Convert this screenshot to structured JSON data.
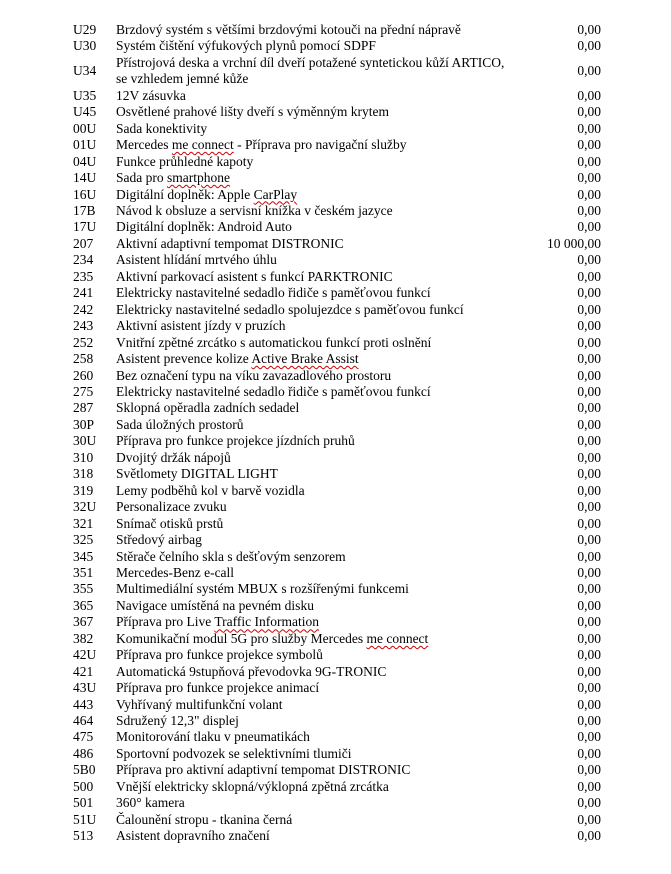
{
  "page": {
    "background": "#ffffff",
    "text_color": "#000000",
    "misspell_color": "#cc0000"
  },
  "price_table": {
    "columns": [
      "code",
      "description",
      "price"
    ],
    "rows": [
      {
        "code": "U29",
        "desc": [
          [
            "Brzdový systém s většími brzdovými kotouči na přední nápravě",
            false
          ]
        ],
        "price": "0,00"
      },
      {
        "code": "U30",
        "desc": [
          [
            "Systém čištění výfukových plynů pomocí SDPF",
            false
          ]
        ],
        "price": "0,00"
      },
      {
        "code": "U34",
        "desc": [
          [
            "Přístrojová deska a vrchní díl dveří potažené syntetickou kůží ARTICO,\nse vzhledem jemné kůže",
            false
          ]
        ],
        "price": "0,00"
      },
      {
        "code": "U35",
        "desc": [
          [
            "12V zásuvka",
            false
          ]
        ],
        "price": "0,00"
      },
      {
        "code": "U45",
        "desc": [
          [
            "Osvětlené prahové lišty dveří s výměnným krytem",
            false
          ]
        ],
        "price": "0,00"
      },
      {
        "code": "00U",
        "desc": [
          [
            "Sada konektivity",
            false
          ]
        ],
        "price": "0,00"
      },
      {
        "code": "01U",
        "desc": [
          [
            "Mercedes ",
            false
          ],
          [
            "me connect",
            true
          ],
          [
            " - Příprava pro navigační služby",
            false
          ]
        ],
        "price": "0,00"
      },
      {
        "code": "04U",
        "desc": [
          [
            "Funkce průhledné kapoty",
            false
          ]
        ],
        "price": "0,00"
      },
      {
        "code": "14U",
        "desc": [
          [
            "Sada pro ",
            false
          ],
          [
            "smartphone",
            true
          ]
        ],
        "price": "0,00"
      },
      {
        "code": "16U",
        "desc": [
          [
            "Digitální doplněk: Apple ",
            false
          ],
          [
            "CarPlay",
            true
          ]
        ],
        "price": "0,00"
      },
      {
        "code": "17B",
        "desc": [
          [
            "Návod k obsluze a servisní knížka v českém jazyce",
            false
          ]
        ],
        "price": "0,00"
      },
      {
        "code": "17U",
        "desc": [
          [
            "Digitální doplněk: Android Auto",
            false
          ]
        ],
        "price": "0,00"
      },
      {
        "code": "207",
        "desc": [
          [
            "Aktivní adaptivní tempomat DISTRONIC",
            false
          ]
        ],
        "price": "10 000,00"
      },
      {
        "code": "234",
        "desc": [
          [
            "Asistent hlídání mrtvého úhlu",
            false
          ]
        ],
        "price": "0,00"
      },
      {
        "code": "235",
        "desc": [
          [
            "Aktivní parkovací asistent s funkcí PARKTRONIC",
            false
          ]
        ],
        "price": "0,00"
      },
      {
        "code": "241",
        "desc": [
          [
            "Elektricky nastavitelné sedadlo řidiče s paměťovou funkcí",
            false
          ]
        ],
        "price": "0,00"
      },
      {
        "code": "242",
        "desc": [
          [
            "Elektricky nastavitelné sedadlo spolujezdce s paměťovou funkcí",
            false
          ]
        ],
        "price": "0,00"
      },
      {
        "code": "243",
        "desc": [
          [
            "Aktivní asistent jízdy v pruzích",
            false
          ]
        ],
        "price": "0,00"
      },
      {
        "code": "252",
        "desc": [
          [
            "Vnitřní zpětné zrcátko s automatickou funkcí proti oslnění",
            false
          ]
        ],
        "price": "0,00"
      },
      {
        "code": "258",
        "desc": [
          [
            "Asistent prevence kolize ",
            false
          ],
          [
            "Active Brake Assist",
            true
          ]
        ],
        "price": "0,00"
      },
      {
        "code": "260",
        "desc": [
          [
            "Bez označení typu na víku zavazadlového prostoru",
            false
          ]
        ],
        "price": "0,00"
      },
      {
        "code": "275",
        "desc": [
          [
            "Elektricky nastavitelné sedadlo řidiče s paměťovou funkcí",
            false
          ]
        ],
        "price": "0,00"
      },
      {
        "code": "287",
        "desc": [
          [
            "Sklopná opěradla zadních sedadel",
            false
          ]
        ],
        "price": "0,00"
      },
      {
        "code": "30P",
        "desc": [
          [
            "Sada úložných prostorů",
            false
          ]
        ],
        "price": "0,00"
      },
      {
        "code": "30U",
        "desc": [
          [
            "Příprava pro funkce projekce jízdních pruhů",
            false
          ]
        ],
        "price": "0,00"
      },
      {
        "code": "310",
        "desc": [
          [
            "Dvojitý držák nápojů",
            false
          ]
        ],
        "price": "0,00"
      },
      {
        "code": "318",
        "desc": [
          [
            "Světlomety DIGITAL LIGHT",
            false
          ]
        ],
        "price": "0,00"
      },
      {
        "code": "319",
        "desc": [
          [
            "Lemy podběhů kol v barvě vozidla",
            false
          ]
        ],
        "price": "0,00"
      },
      {
        "code": "32U",
        "desc": [
          [
            "Personalizace zvuku",
            false
          ]
        ],
        "price": "0,00"
      },
      {
        "code": "321",
        "desc": [
          [
            "Snímač otisků prstů",
            false
          ]
        ],
        "price": "0,00"
      },
      {
        "code": "325",
        "desc": [
          [
            "Středový airbag",
            false
          ]
        ],
        "price": "0,00"
      },
      {
        "code": "345",
        "desc": [
          [
            "Stěrače čelního skla s dešťovým senzorem",
            false
          ]
        ],
        "price": "0,00"
      },
      {
        "code": "351",
        "desc": [
          [
            "Mercedes-Benz e-call",
            false
          ]
        ],
        "price": "0,00"
      },
      {
        "code": "355",
        "desc": [
          [
            "Multimediální systém MBUX s rozšířenými funkcemi",
            false
          ]
        ],
        "price": "0,00"
      },
      {
        "code": "365",
        "desc": [
          [
            "Navigace umístěná na pevném disku",
            false
          ]
        ],
        "price": "0,00"
      },
      {
        "code": "367",
        "desc": [
          [
            "Příprava pro Live ",
            false
          ],
          [
            "Traffic Information",
            true
          ]
        ],
        "price": "0,00"
      },
      {
        "code": "382",
        "desc": [
          [
            "Komunikační modul 5G pro služby Mercedes ",
            false
          ],
          [
            "me connect",
            true
          ]
        ],
        "price": "0,00"
      },
      {
        "code": "42U",
        "desc": [
          [
            "Příprava pro funkce projekce symbolů",
            false
          ]
        ],
        "price": "0,00"
      },
      {
        "code": "421",
        "desc": [
          [
            "Automatická 9stupňová převodovka 9G-TRONIC",
            false
          ]
        ],
        "price": "0,00"
      },
      {
        "code": "43U",
        "desc": [
          [
            "Příprava pro funkce projekce animací",
            false
          ]
        ],
        "price": "0,00"
      },
      {
        "code": "443",
        "desc": [
          [
            "Vyhřívaný multifunkční volant",
            false
          ]
        ],
        "price": "0,00"
      },
      {
        "code": "464",
        "desc": [
          [
            "Sdružený 12,3\" displej",
            false
          ]
        ],
        "price": "0,00"
      },
      {
        "code": "475",
        "desc": [
          [
            "Monitorování tlaku v pneumatikách",
            false
          ]
        ],
        "price": "0,00"
      },
      {
        "code": "486",
        "desc": [
          [
            "Sportovní podvozek se selektivními tlumiči",
            false
          ]
        ],
        "price": "0,00"
      },
      {
        "code": "5B0",
        "desc": [
          [
            "Příprava pro aktivní adaptivní tempomat DISTRONIC",
            false
          ]
        ],
        "price": "0,00"
      },
      {
        "code": "500",
        "desc": [
          [
            "Vnější elektricky sklopná/výklopná zpětná zrcátka",
            false
          ]
        ],
        "price": "0,00"
      },
      {
        "code": "501",
        "desc": [
          [
            "360° kamera",
            false
          ]
        ],
        "price": "0,00"
      },
      {
        "code": "51U",
        "desc": [
          [
            "Čalounění stropu - tkanina černá",
            false
          ]
        ],
        "price": "0,00"
      },
      {
        "code": "513",
        "desc": [
          [
            "Asistent dopravního značení",
            false
          ]
        ],
        "price": "0,00"
      }
    ]
  }
}
